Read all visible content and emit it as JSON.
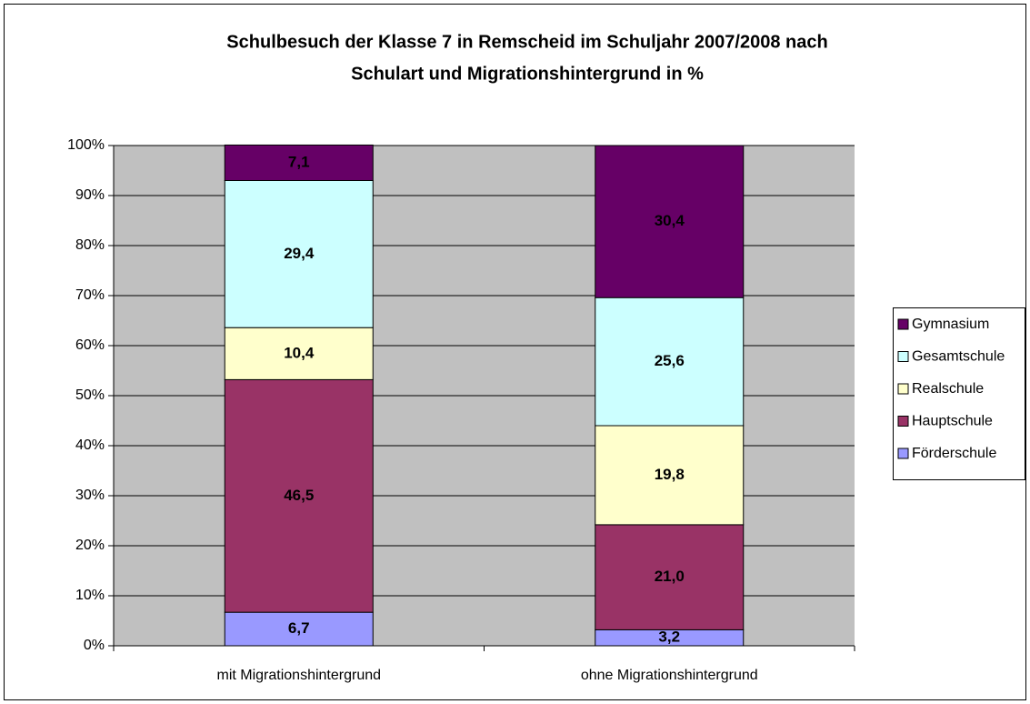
{
  "chart_data": {
    "type": "stacked_bar",
    "title": [
      "Schulbesuch der Klasse 7 in Remscheid im Schuljahr 2007/2008 nach",
      "Schulart und Migrationshintergrund in %"
    ],
    "categories": [
      "mit Migrationshintergrund",
      "ohne Migrationshintergrund"
    ],
    "series": [
      {
        "name": "Förderschule",
        "color": "#9999ff",
        "values": [
          6.7,
          3.2
        ],
        "value_labels": [
          "6,7",
          "3,2"
        ]
      },
      {
        "name": "Hauptschule",
        "color": "#993366",
        "values": [
          46.5,
          21.0
        ],
        "value_labels": [
          "46,5",
          "21,0"
        ]
      },
      {
        "name": "Realschule",
        "color": "#ffffcc",
        "values": [
          10.4,
          19.8
        ],
        "value_labels": [
          "10,4",
          "19,8"
        ]
      },
      {
        "name": "Gesamtschule",
        "color": "#ccffff",
        "values": [
          29.4,
          25.6
        ],
        "value_labels": [
          "29,4",
          "25,6"
        ]
      },
      {
        "name": "Gymnasium",
        "color": "#660066",
        "values": [
          7.1,
          30.4
        ],
        "value_labels": [
          "7,1",
          "30,4"
        ]
      }
    ],
    "ylim": [
      0,
      100
    ],
    "yticks": [
      {
        "value": 0,
        "label": "0%"
      },
      {
        "value": 10,
        "label": "10%"
      },
      {
        "value": 20,
        "label": "20%"
      },
      {
        "value": 30,
        "label": "30%"
      },
      {
        "value": 40,
        "label": "40%"
      },
      {
        "value": 50,
        "label": "50%"
      },
      {
        "value": 60,
        "label": "60%"
      },
      {
        "value": 70,
        "label": "70%"
      },
      {
        "value": 80,
        "label": "80%"
      },
      {
        "value": 90,
        "label": "90%"
      },
      {
        "value": 100,
        "label": "100%"
      }
    ],
    "grid": true,
    "legend": "right"
  }
}
